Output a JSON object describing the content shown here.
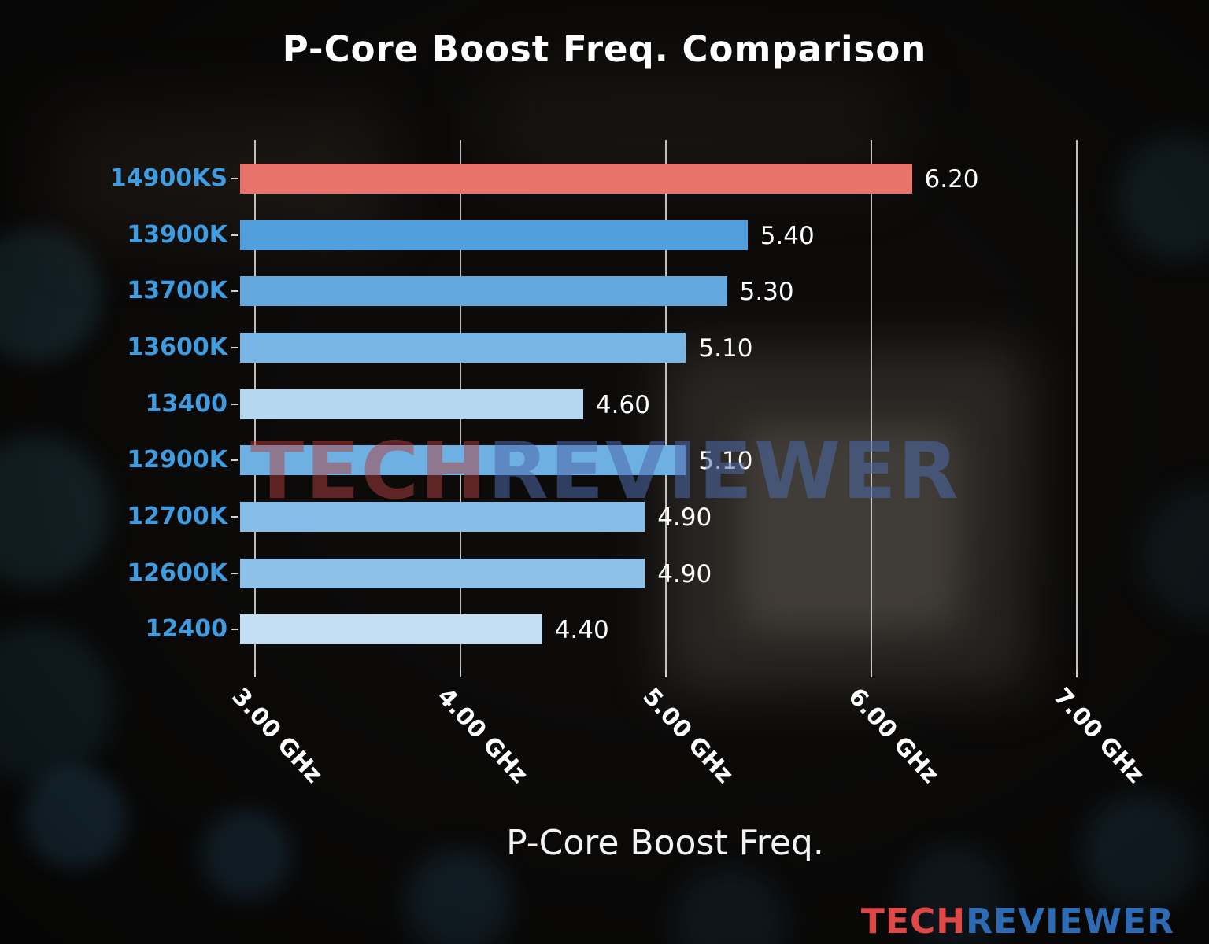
{
  "chart_data": {
    "type": "bar",
    "orientation": "horizontal",
    "title": "P-Core Boost Freq. Comparison",
    "xlabel": "P-Core Boost Freq.",
    "categories": [
      "14900KS",
      "13900K",
      "13700K",
      "13600K",
      "13400",
      "12900K",
      "12700K",
      "12600K",
      "12400"
    ],
    "values": [
      6.2,
      5.4,
      5.3,
      5.1,
      4.6,
      5.1,
      4.9,
      4.9,
      4.4
    ],
    "value_labels": [
      "6.20",
      "5.40",
      "5.30",
      "5.10",
      "4.60",
      "5.10",
      "4.90",
      "4.90",
      "4.40"
    ],
    "bar_colors": [
      "#e8736b",
      "#519fdd",
      "#63a9e0",
      "#79b6e6",
      "#b5d7f0",
      "#6fb0e2",
      "#87bde9",
      "#8dc1ea",
      "#c4def4"
    ],
    "highlight_color": "#e8736b",
    "category_label_color": "#3f9ce1",
    "value_label_color": "#ffffff",
    "gridline_color": "#dedede",
    "grid": true,
    "legend": false,
    "xlim": [
      2.93,
      7.47
    ],
    "x_ticks": [
      {
        "value": 3,
        "label": "3.00 GHz"
      },
      {
        "value": 4,
        "label": "4.00 GHz"
      },
      {
        "value": 5,
        "label": "5.00 GHz"
      },
      {
        "value": 6,
        "label": "6.00 GHz"
      },
      {
        "value": 7,
        "label": "7.00 GHz"
      }
    ]
  },
  "watermark": {
    "part1": "TECH",
    "part2": "REVIEWER",
    "part1_color": "rgba(178,62,62,0.50)",
    "part2_color": "rgba(77,105,170,0.55)"
  },
  "logo": {
    "part1": "TECH",
    "part2": "REVIEWER",
    "part1_color": "#e04747",
    "part2_color": "#2d6cb4"
  }
}
